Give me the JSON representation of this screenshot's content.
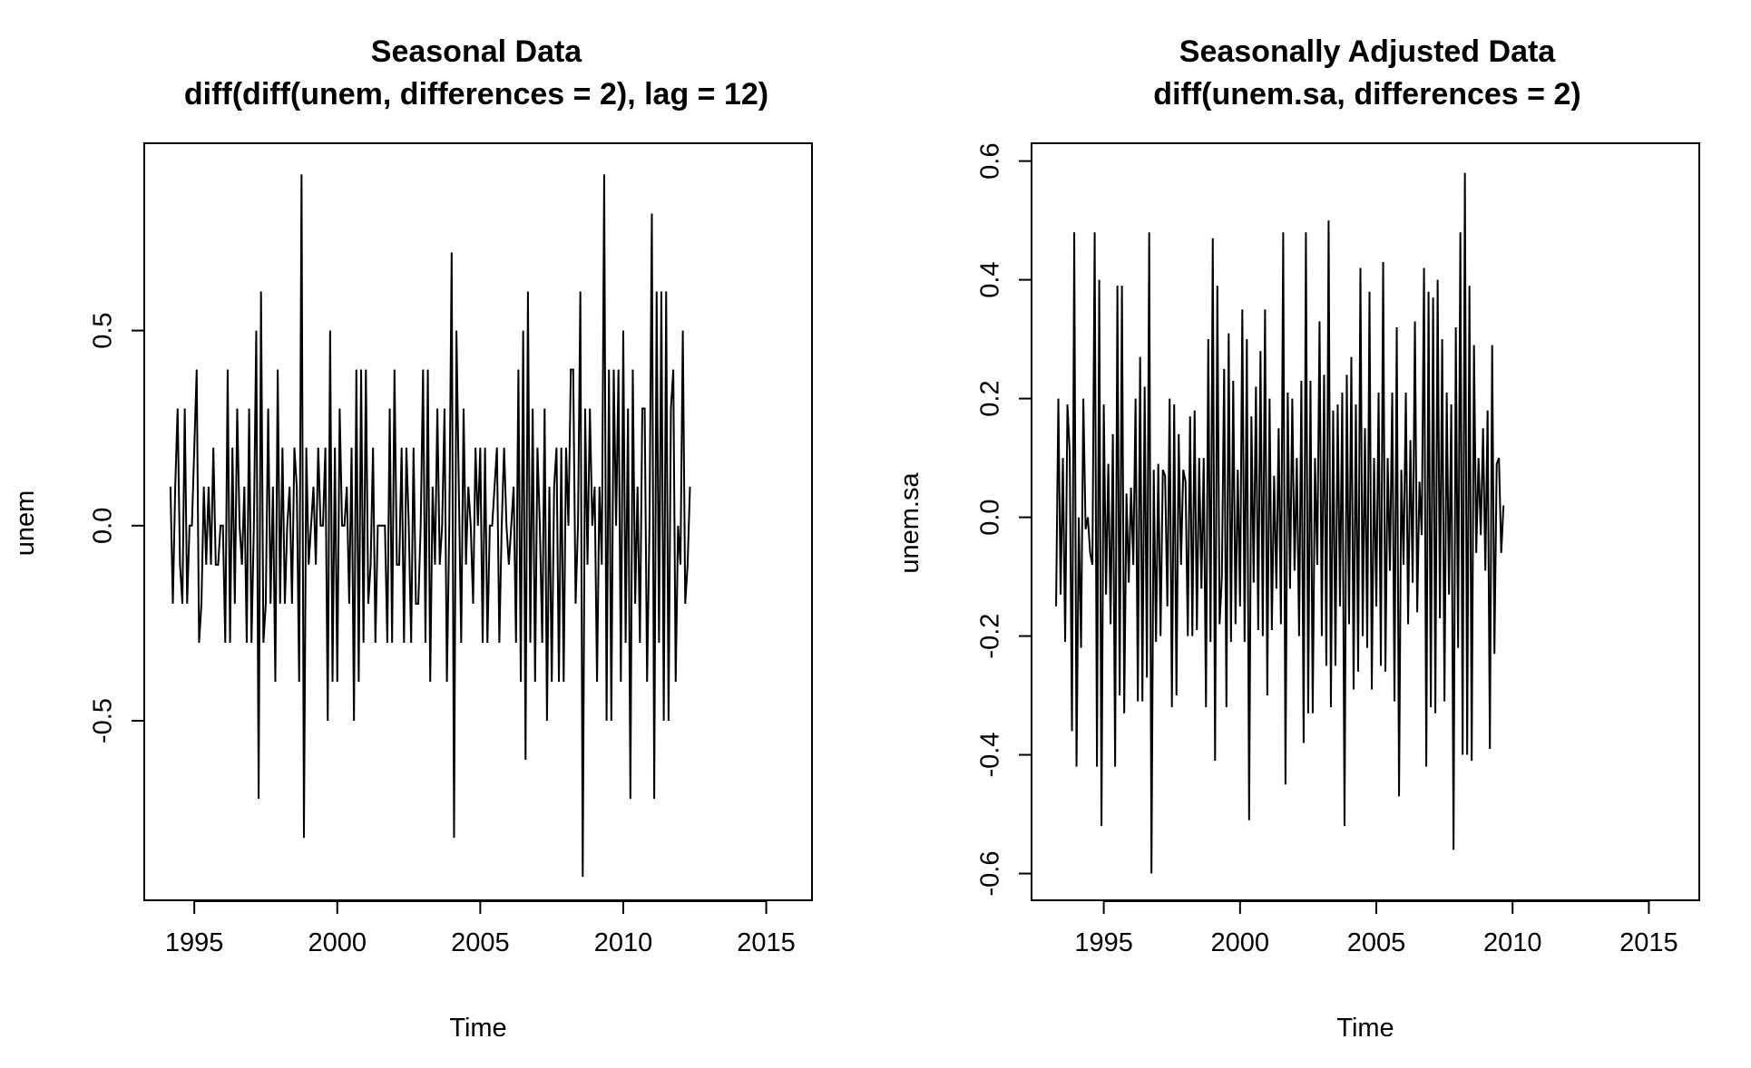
{
  "chart_data": [
    {
      "type": "line",
      "title": "Seasonal Data",
      "subtitle": "diff(diff(unem, differences = 2), lag = 12)",
      "xlabel": "Time",
      "ylabel": "unem",
      "xlim": [
        1993.25,
        2016.6
      ],
      "ylim": [
        -0.96,
        0.98
      ],
      "xticks": [
        1995,
        2000,
        2005,
        2010,
        2015
      ],
      "yticks": [
        -0.5,
        0.0,
        0.5
      ],
      "ytick_labels": [
        "-0.5",
        "0.0",
        "0.5"
      ],
      "grid": false,
      "series": [
        {
          "name": "unem",
          "x_start": 1994.1667,
          "x_step": 0.083333,
          "values": [
            0.1,
            -0.2,
            0.1,
            0.3,
            -0.1,
            -0.2,
            0.3,
            -0.2,
            0.0,
            0.0,
            0.2,
            0.4,
            -0.3,
            -0.2,
            0.1,
            -0.1,
            0.1,
            -0.1,
            0.2,
            -0.1,
            -0.1,
            0.0,
            0.0,
            -0.3,
            0.4,
            -0.3,
            0.2,
            -0.2,
            0.3,
            0.0,
            -0.1,
            0.1,
            -0.3,
            0.3,
            -0.3,
            0.0,
            0.5,
            -0.7,
            0.6,
            -0.3,
            -0.2,
            0.3,
            -0.2,
            0.1,
            -0.4,
            0.4,
            -0.2,
            0.2,
            -0.2,
            0.0,
            0.1,
            -0.2,
            0.2,
            0.1,
            -0.4,
            0.9,
            -0.8,
            0.2,
            -0.1,
            0.0,
            0.1,
            -0.1,
            0.2,
            0.0,
            0.0,
            0.2,
            -0.5,
            0.5,
            -0.4,
            0.2,
            -0.4,
            0.3,
            0.0,
            0.0,
            0.1,
            -0.2,
            0.2,
            -0.5,
            0.4,
            -0.4,
            0.4,
            -0.3,
            0.4,
            -0.2,
            -0.1,
            0.2,
            -0.3,
            0.0,
            0.0,
            0.0,
            0.0,
            -0.3,
            0.3,
            -0.3,
            0.4,
            -0.1,
            -0.1,
            0.2,
            -0.3,
            0.2,
            0.0,
            -0.3,
            0.2,
            -0.2,
            -0.2,
            0.0,
            0.4,
            -0.3,
            0.4,
            -0.4,
            0.1,
            -0.1,
            0.3,
            -0.1,
            0.0,
            0.3,
            -0.4,
            0.0,
            0.7,
            -0.8,
            0.5,
            0.1,
            -0.3,
            0.3,
            -0.1,
            0.1,
            0.0,
            -0.2,
            0.2,
            0.0,
            0.2,
            -0.3,
            0.2,
            -0.3,
            0.0,
            0.0,
            0.1,
            0.2,
            -0.3,
            0.0,
            0.2,
            0.0,
            -0.1,
            0.0,
            0.1,
            -0.3,
            0.4,
            -0.4,
            0.5,
            -0.6,
            0.6,
            -0.3,
            0.3,
            -0.4,
            0.2,
            0.0,
            -0.3,
            0.3,
            -0.5,
            0.1,
            -0.4,
            0.1,
            0.2,
            -0.4,
            0.2,
            -0.4,
            0.2,
            0.0,
            0.4,
            0.4,
            -0.2,
            0.0,
            0.6,
            -0.9,
            0.3,
            -0.1,
            0.3,
            0.0,
            0.1,
            -0.4,
            0.1,
            -0.1,
            0.9,
            -0.5,
            0.4,
            -0.5,
            0.4,
            0.0,
            0.4,
            -0.4,
            0.5,
            -0.3,
            0.3,
            -0.7,
            0.4,
            -0.2,
            0.1,
            -0.3,
            0.3,
            0.3,
            -0.4,
            0.0,
            0.8,
            -0.7,
            0.6,
            -0.3,
            0.6,
            -0.5,
            0.6,
            -0.5,
            0.3,
            0.4,
            -0.4,
            0.0,
            -0.1,
            0.5,
            -0.2,
            -0.1,
            0.1
          ]
        }
      ]
    },
    {
      "type": "line",
      "title": "Seasonally Adjusted Data",
      "subtitle": "diff(unem.sa, differences = 2)",
      "xlabel": "Time",
      "ylabel": "unem.sa",
      "xlim": [
        1992.35,
        2016.85
      ],
      "ylim": [
        -0.645,
        0.63
      ],
      "xticks": [
        1995,
        2000,
        2005,
        2010,
        2015
      ],
      "yticks": [
        -0.6,
        -0.4,
        -0.2,
        0.0,
        0.2,
        0.4,
        0.6
      ],
      "ytick_labels": [
        "-0.6",
        "-0.4",
        "-0.2",
        "0.0",
        "0.2",
        "0.4",
        "0.6"
      ],
      "grid": false,
      "series": [
        {
          "name": "unem.sa",
          "x_start": 1993.25,
          "x_step": 0.083333,
          "values": [
            -0.15,
            0.2,
            -0.13,
            0.1,
            -0.21,
            0.19,
            0.11,
            -0.36,
            0.48,
            -0.42,
            0.0,
            -0.22,
            0.2,
            -0.02,
            0.0,
            -0.06,
            -0.08,
            0.48,
            -0.42,
            0.4,
            -0.52,
            0.19,
            -0.13,
            0.09,
            -0.18,
            0.14,
            -0.42,
            0.39,
            -0.3,
            0.39,
            -0.33,
            0.04,
            -0.11,
            0.05,
            -0.08,
            0.2,
            -0.31,
            0.27,
            -0.31,
            0.22,
            -0.27,
            0.48,
            -0.6,
            0.08,
            -0.21,
            0.09,
            -0.2,
            0.08,
            0.07,
            -0.15,
            0.2,
            -0.32,
            0.19,
            -0.3,
            0.14,
            -0.08,
            0.08,
            0.06,
            -0.2,
            0.17,
            -0.2,
            0.18,
            -0.19,
            0.1,
            -0.12,
            0.1,
            -0.32,
            0.3,
            -0.21,
            0.47,
            -0.41,
            0.39,
            -0.18,
            -0.1,
            0.25,
            -0.32,
            0.31,
            -0.21,
            0.23,
            -0.18,
            0.08,
            -0.15,
            0.35,
            -0.21,
            0.3,
            -0.51,
            0.17,
            -0.11,
            0.22,
            -0.19,
            0.28,
            -0.2,
            0.35,
            -0.3,
            0.2,
            -0.19,
            0.07,
            -0.12,
            0.15,
            -0.18,
            0.48,
            -0.45,
            0.21,
            -0.12,
            0.2,
            -0.09,
            0.1,
            -0.2,
            0.23,
            -0.38,
            0.48,
            -0.33,
            0.23,
            -0.33,
            0.1,
            -0.08,
            0.33,
            -0.2,
            0.24,
            -0.25,
            0.5,
            -0.32,
            0.18,
            -0.25,
            0.19,
            -0.15,
            0.21,
            -0.52,
            0.24,
            -0.18,
            0.27,
            -0.29,
            0.19,
            -0.26,
            0.42,
            -0.2,
            0.15,
            -0.22,
            0.38,
            -0.29,
            0.1,
            -0.15,
            0.21,
            -0.25,
            0.43,
            -0.26,
            0.1,
            -0.09,
            0.21,
            -0.31,
            0.32,
            -0.47,
            0.08,
            -0.08,
            0.21,
            -0.18,
            0.13,
            -0.11,
            0.33,
            -0.16,
            0.06,
            -0.03,
            0.42,
            -0.42,
            0.38,
            -0.32,
            0.37,
            -0.33,
            0.4,
            -0.17,
            0.3,
            -0.31,
            0.21,
            -0.13,
            0.19,
            -0.56,
            0.32,
            -0.22,
            0.48,
            -0.4,
            0.58,
            -0.4,
            0.39,
            -0.41,
            0.29,
            -0.06,
            0.1,
            -0.03,
            0.15,
            -0.09,
            0.18,
            -0.39,
            0.29,
            -0.23,
            0.09,
            0.1,
            -0.06,
            0.02
          ]
        }
      ]
    }
  ]
}
